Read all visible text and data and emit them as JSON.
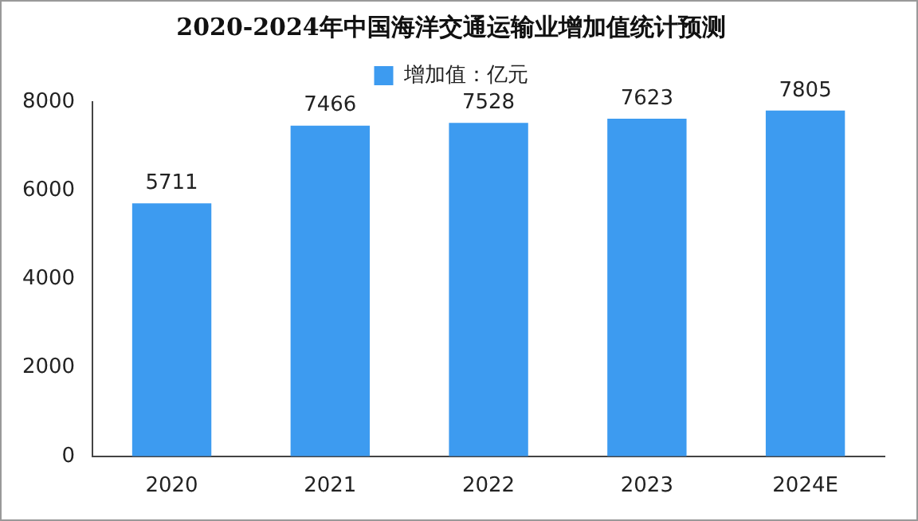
{
  "chart_data": {
    "type": "bar",
    "title": "2020-2024年中国海洋交通运输业增加值统计预测",
    "categories": [
      "2020",
      "2021",
      "2022",
      "2023",
      "2024E"
    ],
    "series": [
      {
        "name": "增加值：亿元",
        "color": "#3d9bf0",
        "values": [
          5711,
          7466,
          7528,
          7623,
          7805
        ]
      }
    ],
    "ylim": [
      0,
      8000
    ],
    "yticks": [
      0,
      2000,
      4000,
      6000,
      8000
    ],
    "grid": false,
    "legend": "top",
    "data_labels": true
  }
}
